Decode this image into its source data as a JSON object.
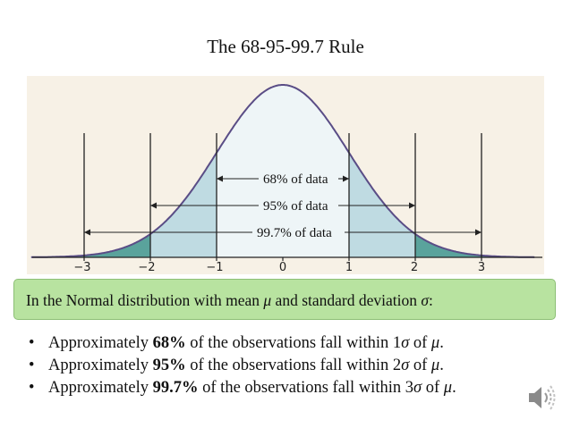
{
  "title": "The 68-95-99.7 Rule",
  "figure": {
    "axis_ticks": [
      "−3",
      "−2",
      "−1",
      "0",
      "1",
      "2",
      "3"
    ],
    "band_labels": [
      "68% of data",
      "95% of data",
      "99.7% of data"
    ],
    "colors": {
      "background": "#f7f1e6",
      "center_fill": "#eef5f7",
      "band_fill": "#bfdbe2",
      "tail_fill": "#5aa39c",
      "curve": "#5a4d86"
    }
  },
  "definition": {
    "prefix": "In the Normal distribution with mean ",
    "mu": "μ",
    "middle": " and standard deviation ",
    "sigma": "σ",
    "suffix": ":",
    "box_color": "#b8e3a0"
  },
  "bullets": [
    {
      "symbol": "•",
      "before": "Approximately ",
      "percent": "68%",
      "after": " of the observations fall within 1",
      "sigma": "σ",
      "of": " of ",
      "mu": "μ",
      "end": "."
    },
    {
      "symbol": "•",
      "before": "Approximately ",
      "percent": "95%",
      "after": " of the observations fall within 2",
      "sigma": "σ",
      "of": " of ",
      "mu": "μ",
      "end": "."
    },
    {
      "symbol": "•",
      "before": "Approximately ",
      "percent": "99.7%",
      "after": " of the observations fall within 3",
      "sigma": "σ",
      "of": " of ",
      "mu": "μ",
      "end": "."
    }
  ],
  "speaker_icon": "speaker-icon"
}
